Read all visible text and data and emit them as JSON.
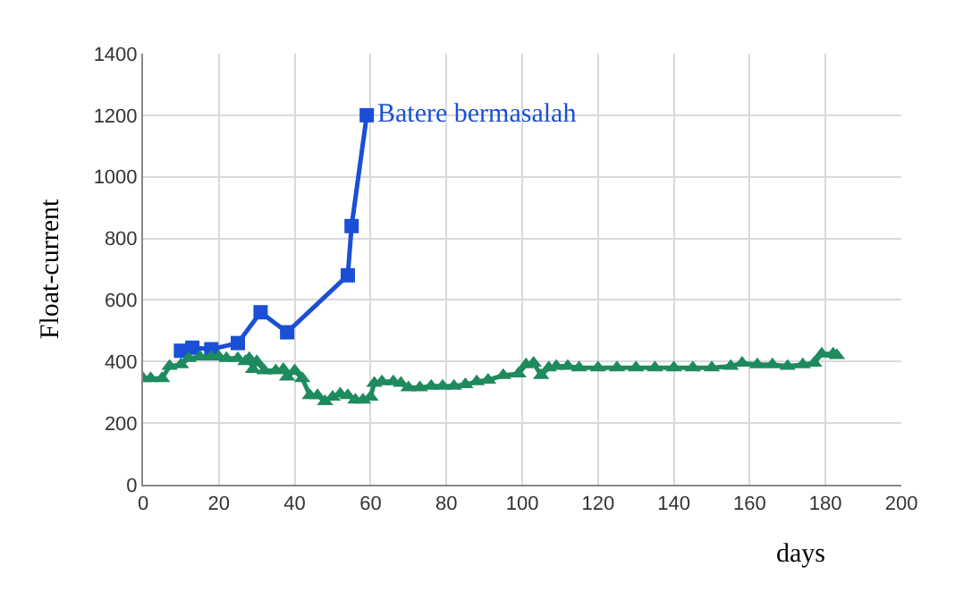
{
  "chart_data": {
    "type": "line",
    "xlabel": "days",
    "ylabel": "Float-current",
    "xlim": [
      0,
      200
    ],
    "xticks": [
      0,
      20,
      40,
      60,
      80,
      100,
      120,
      140,
      160,
      180,
      200
    ],
    "ylim": [
      0,
      1400
    ],
    "yticks": [
      0,
      200,
      400,
      600,
      800,
      1000,
      1200,
      1400
    ],
    "grid": true,
    "series": [
      {
        "color": "#1a4fd6",
        "marker": "square",
        "x": [
          10,
          13,
          18,
          25,
          31,
          38,
          54,
          55,
          59
        ],
        "values": [
          435,
          445,
          440,
          460,
          560,
          495,
          680,
          840,
          1200
        ]
      },
      {
        "color": "#1e8a5e",
        "marker": "triangle",
        "x": [
          0,
          2,
          5,
          7,
          10,
          12,
          15,
          18,
          20,
          22,
          25,
          27,
          28,
          29,
          30,
          32,
          35,
          37,
          38,
          40,
          42,
          44,
          46,
          48,
          50,
          52,
          54,
          56,
          58,
          60,
          61,
          63,
          66,
          68,
          70,
          73,
          76,
          79,
          82,
          85,
          88,
          91,
          95,
          99,
          101,
          103,
          105,
          107,
          109,
          112,
          115,
          120,
          125,
          130,
          135,
          140,
          145,
          150,
          155,
          158,
          162,
          166,
          170,
          174,
          177,
          179,
          182,
          183
        ],
        "values": [
          345,
          345,
          345,
          385,
          390,
          410,
          415,
          415,
          415,
          410,
          410,
          400,
          410,
          375,
          400,
          370,
          370,
          375,
          350,
          370,
          345,
          290,
          290,
          270,
          285,
          295,
          290,
          275,
          275,
          285,
          330,
          335,
          335,
          330,
          315,
          315,
          320,
          320,
          320,
          325,
          335,
          340,
          355,
          360,
          390,
          395,
          355,
          380,
          385,
          385,
          380,
          380,
          380,
          380,
          380,
          380,
          380,
          380,
          385,
          395,
          390,
          390,
          385,
          390,
          395,
          425,
          425,
          420
        ]
      }
    ],
    "annotations": [
      {
        "text": "Batere bermasalah",
        "x": 59,
        "y": 1200
      }
    ]
  }
}
